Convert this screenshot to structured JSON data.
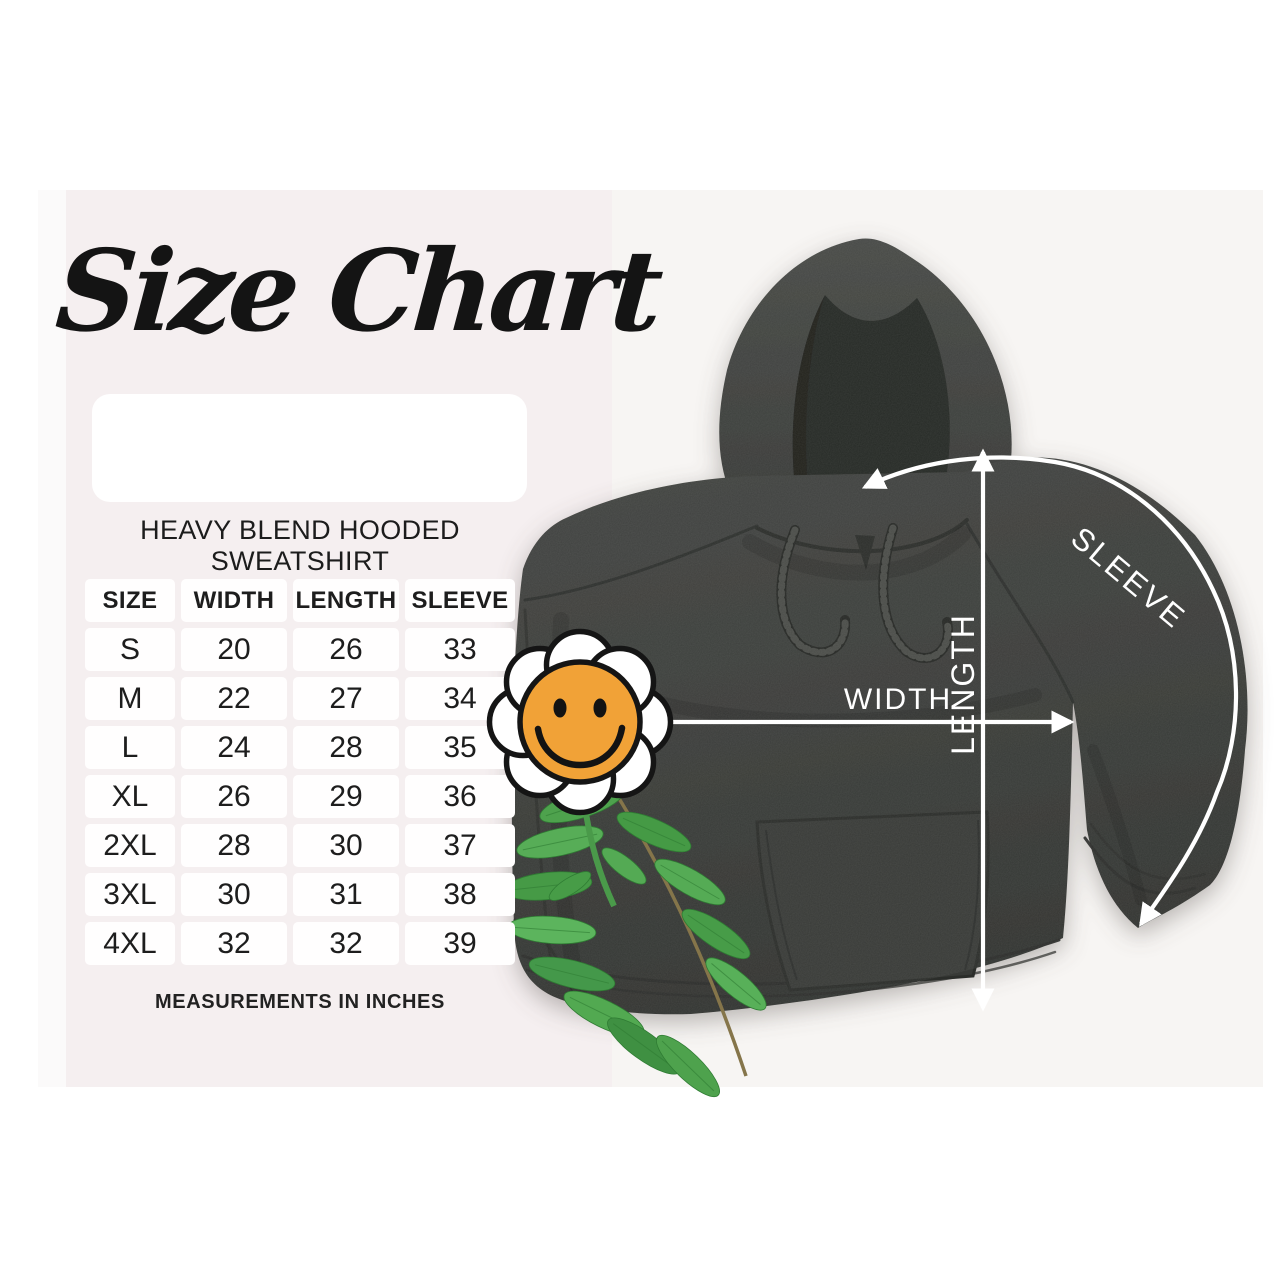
{
  "page": {
    "title": "Size Chart"
  },
  "product": {
    "line1": "HEAVY BLEND HOODED",
    "line2": "SWEATSHIRT",
    "note": "MEASUREMENTS IN INCHES"
  },
  "size_table": {
    "columns": [
      "SIZE",
      "WIDTH",
      "LENGTH",
      "SLEEVE"
    ],
    "rows": [
      [
        "S",
        "20",
        "26",
        "33"
      ],
      [
        "M",
        "22",
        "27",
        "34"
      ],
      [
        "L",
        "24",
        "28",
        "35"
      ],
      [
        "XL",
        "26",
        "29",
        "36"
      ],
      [
        "2XL",
        "28",
        "30",
        "37"
      ],
      [
        "3XL",
        "30",
        "31",
        "38"
      ],
      [
        "4XL",
        "32",
        "32",
        "39"
      ]
    ],
    "units": "inches"
  },
  "diagram": {
    "width_label": "WIDTH",
    "length_label": "LENGTH",
    "sleeve_label": "SLEEVE"
  },
  "colors": {
    "panel_pink": "#f5eff0",
    "panel_edge": "#fbfafa",
    "photo_bg": "#f7f5f3",
    "hoodie_fabric": "#3c3e3b",
    "hood_interior": "#2a2c29",
    "flower_center": "#f1a237",
    "petal_white": "#ffffff",
    "leaf_green": "#4ea24d",
    "arrow_white": "#ffffff",
    "text_dark": "#1d1d1d"
  }
}
